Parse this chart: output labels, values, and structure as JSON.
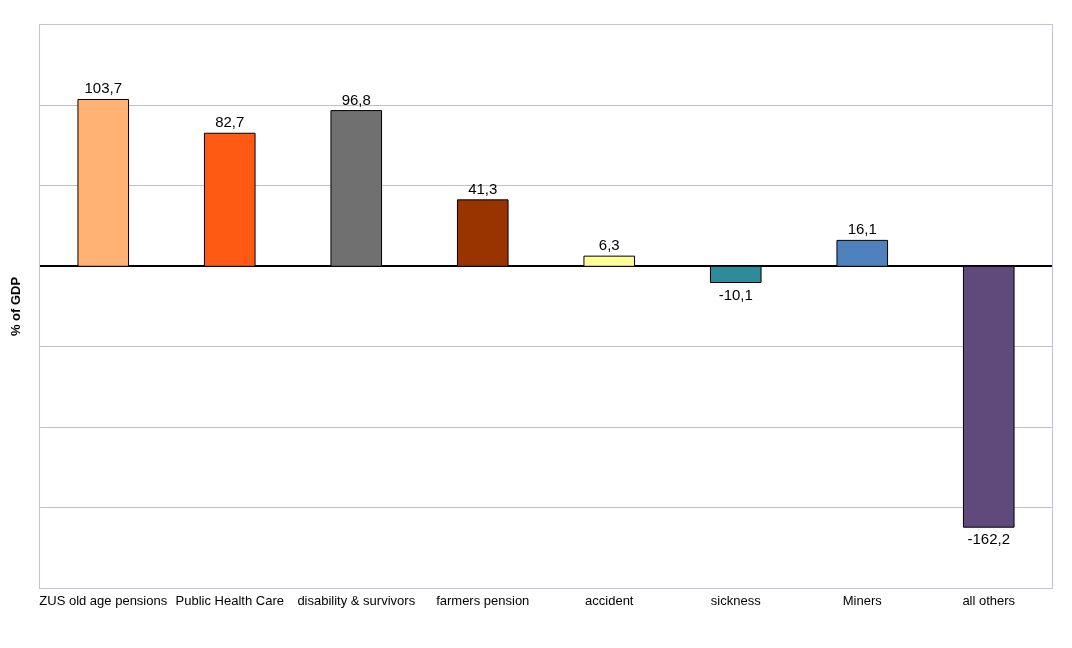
{
  "chart_data": {
    "type": "bar",
    "ylabel": "% of GDP",
    "categories": [
      "ZUS old age pensions",
      "Public Health Care",
      "disability & survivors",
      "farmers pension",
      "accident",
      "sickness",
      "Miners",
      "all others"
    ],
    "values": [
      103.7,
      82.7,
      96.8,
      41.3,
      6.3,
      -10.1,
      16.1,
      -162.2
    ],
    "value_labels": [
      "103,7",
      "82,7",
      "96,8",
      "41,3",
      "6,3",
      "-10,1",
      "16,1",
      "-162,2"
    ],
    "colors": [
      "#ffb273",
      "#ff5a14",
      "#707070",
      "#993300",
      "#ffff99",
      "#2e8b9a",
      "#4f81bd",
      "#604a7b"
    ],
    "ylim": [
      -200,
      150
    ],
    "yticks": [
      {
        "value": -150,
        "label": null
      },
      {
        "value": -100,
        "label": null
      },
      {
        "value": -50,
        "label": null
      },
      {
        "value": 0,
        "label": null
      },
      {
        "value": 50,
        "label": null
      },
      {
        "value": 100,
        "label": null
      }
    ],
    "grid": "y",
    "tick_labels": "x"
  }
}
